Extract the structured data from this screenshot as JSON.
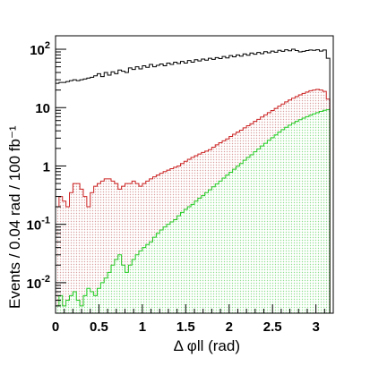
{
  "chart_data": {
    "type": "histogram",
    "title": "",
    "xlabel": "Δ φll (rad)",
    "ylabel": "Events / 0.04 rad / 100 fb⁻¹",
    "xlim": [
      0,
      3.2
    ],
    "ylim": [
      0.003,
      170
    ],
    "y_scale": "log",
    "grid": false,
    "legend": "none",
    "x_ticks": [
      {
        "value": 0,
        "label": "0"
      },
      {
        "value": 0.5,
        "label": "0.5"
      },
      {
        "value": 1,
        "label": "1"
      },
      {
        "value": 1.5,
        "label": "1.5"
      },
      {
        "value": 2,
        "label": "2"
      },
      {
        "value": 2.5,
        "label": "2.5"
      },
      {
        "value": 3,
        "label": "3"
      }
    ],
    "y_ticks": [
      {
        "value": 100,
        "base": "10",
        "exp": "2"
      },
      {
        "value": 10,
        "base": "10",
        "exp": ""
      },
      {
        "value": 1,
        "base": "1",
        "exp": ""
      },
      {
        "value": 0.1,
        "base": "10",
        "exp": "-1"
      },
      {
        "value": 0.01,
        "base": "10",
        "exp": "-2"
      }
    ],
    "bin_edges_start": 0,
    "bin_width": 0.04,
    "series": [
      {
        "name": "",
        "style": "line",
        "color": "#000000",
        "values": [
          26,
          27,
          27,
          28,
          29,
          30,
          29,
          30,
          31,
          32,
          33,
          35,
          38,
          34,
          40,
          36,
          41,
          38,
          44,
          42,
          40,
          48,
          45,
          50,
          46,
          52,
          49,
          55,
          50,
          53,
          56,
          52,
          58,
          55,
          60,
          57,
          62,
          58,
          64,
          60,
          66,
          63,
          68,
          65,
          70,
          67,
          72,
          69,
          75,
          71,
          78,
          74,
          80,
          76,
          83,
          79,
          86,
          82,
          88,
          84,
          91,
          87,
          93,
          89,
          96,
          92,
          98,
          94,
          100,
          95,
          90,
          92,
          95,
          97,
          96,
          98,
          93,
          97,
          70
        ]
      },
      {
        "name": "",
        "style": "hatched-fill",
        "color": "#cc2222",
        "values": [
          0.2,
          0.3,
          0.25,
          0.2,
          0.35,
          0.5,
          0.5,
          0.4,
          0.3,
          0.2,
          0.35,
          0.45,
          0.5,
          0.55,
          0.6,
          0.6,
          0.55,
          0.5,
          0.4,
          0.45,
          0.5,
          0.5,
          0.55,
          0.5,
          0.45,
          0.5,
          0.55,
          0.6,
          0.65,
          0.7,
          0.75,
          0.8,
          0.85,
          0.9,
          0.95,
          1.0,
          1.1,
          1.2,
          1.3,
          1.4,
          1.5,
          1.6,
          1.7,
          1.8,
          1.9,
          2.1,
          2.3,
          2.5,
          2.7,
          2.9,
          3.2,
          3.5,
          3.8,
          4.1,
          4.5,
          4.9,
          5.3,
          5.8,
          6.3,
          6.9,
          7.5,
          8.2,
          8.9,
          9.7,
          10.6,
          11.5,
          12.5,
          13.5,
          14.5,
          15.5,
          16.5,
          17.5,
          18.5,
          19.5,
          20,
          20.5,
          20,
          19,
          14
        ]
      },
      {
        "name": "",
        "style": "hatched-fill",
        "color": "#22cc22",
        "values": [
          0.004,
          0.006,
          0.004,
          0.005,
          0.006,
          0.007,
          0.005,
          0.004,
          0.006,
          0.008,
          0.007,
          0.006,
          0.008,
          0.01,
          0.012,
          0.015,
          0.02,
          0.025,
          0.03,
          0.02,
          0.015,
          0.02,
          0.025,
          0.03,
          0.035,
          0.04,
          0.045,
          0.05,
          0.06,
          0.07,
          0.08,
          0.09,
          0.1,
          0.11,
          0.12,
          0.14,
          0.16,
          0.18,
          0.2,
          0.22,
          0.25,
          0.28,
          0.31,
          0.35,
          0.39,
          0.44,
          0.49,
          0.55,
          0.62,
          0.7,
          0.78,
          0.88,
          0.99,
          1.1,
          1.25,
          1.4,
          1.55,
          1.75,
          1.95,
          2.2,
          2.45,
          2.75,
          3.05,
          3.4,
          3.8,
          4.2,
          4.6,
          5.0,
          5.4,
          5.8,
          6.2,
          6.6,
          7.0,
          7.4,
          7.8,
          8.2,
          8.6,
          9.0,
          9.2
        ]
      }
    ]
  }
}
